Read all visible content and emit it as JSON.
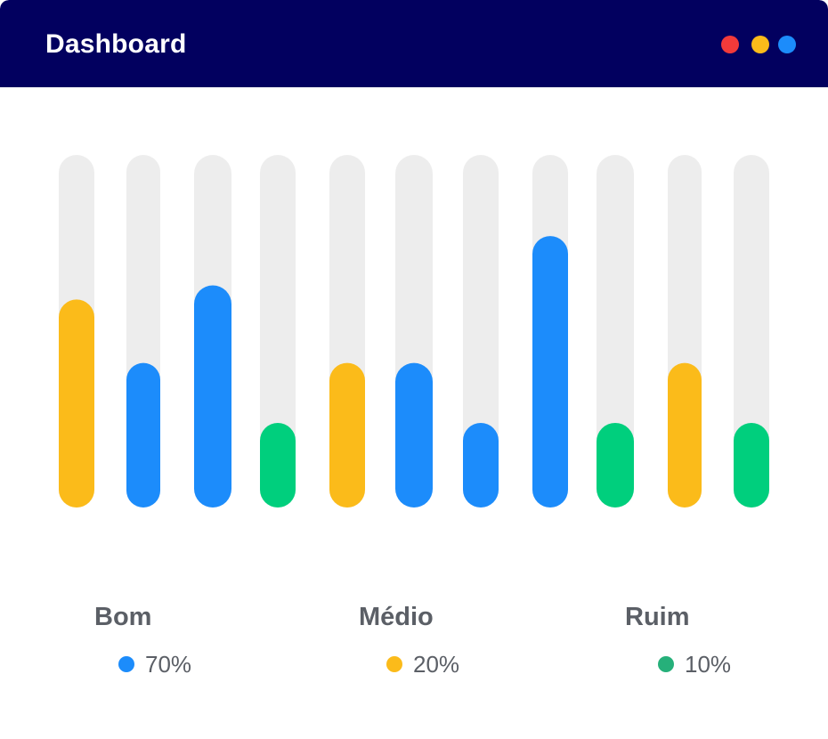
{
  "window": {
    "title": "Dashboard",
    "controls": [
      {
        "name": "close",
        "color": "#f23a3a"
      },
      {
        "name": "minimize",
        "color": "#fbbb1a"
      },
      {
        "name": "maximize",
        "color": "#1c8cfb"
      }
    ]
  },
  "colors": {
    "header_bg": "#02005f",
    "track": "#ededed",
    "blue": "#1c8cfb",
    "yellow": "#fbbb1a",
    "green": "#00cf7d",
    "legend_green": "#26b07a",
    "text": "#5b5f66"
  },
  "chart_data": {
    "type": "bar",
    "ylim": [
      0,
      100
    ],
    "grid": false,
    "axes_visible": false,
    "bars": [
      {
        "value": 59,
        "color": "yellow"
      },
      {
        "value": 41,
        "color": "blue"
      },
      {
        "value": 63,
        "color": "blue"
      },
      {
        "value": 24,
        "color": "green"
      },
      {
        "value": 41,
        "color": "yellow"
      },
      {
        "value": 41,
        "color": "blue"
      },
      {
        "value": 24,
        "color": "blue"
      },
      {
        "value": 77,
        "color": "blue"
      },
      {
        "value": 24,
        "color": "green"
      },
      {
        "value": 41,
        "color": "yellow"
      },
      {
        "value": 24,
        "color": "green"
      }
    ]
  },
  "legend": [
    {
      "label": "Bom",
      "value": "70%",
      "color": "#1c8cfb"
    },
    {
      "label": "Médio",
      "value": "20%",
      "color": "#fbbb1a"
    },
    {
      "label": "Ruim",
      "value": "10%",
      "color": "#26b07a"
    }
  ]
}
